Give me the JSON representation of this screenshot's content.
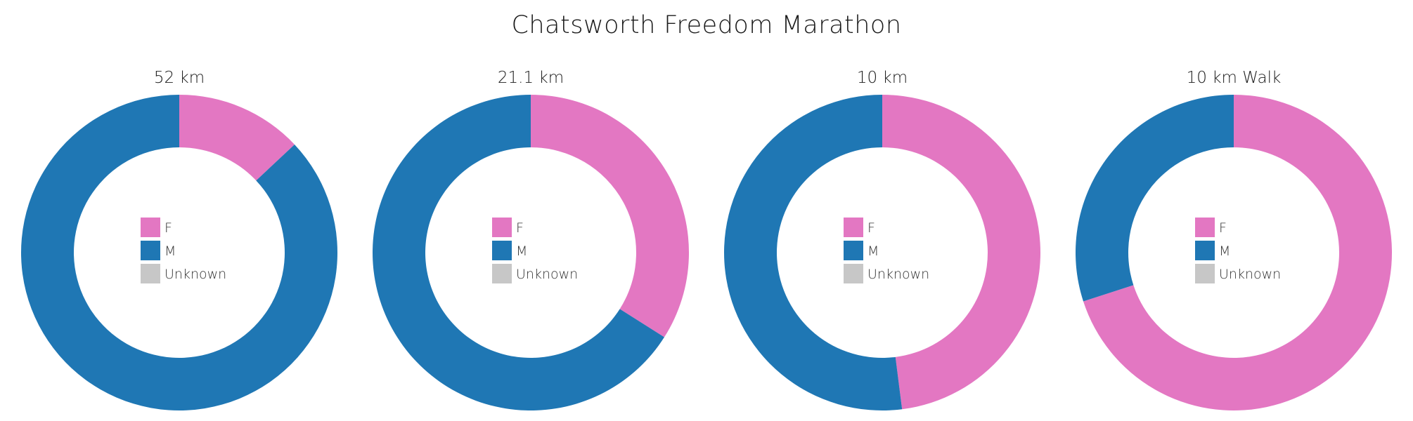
{
  "title": "Chatsworth Freedom Marathon",
  "legend": {
    "entries": [
      {
        "label": "F",
        "color": "#e377c2"
      },
      {
        "label": "M",
        "color": "#1f77b4"
      },
      {
        "label": "Unknown",
        "color": "#c7c7c7"
      }
    ]
  },
  "chart_data": [
    {
      "type": "pie",
      "title": "52 km",
      "categories": [
        "F",
        "M",
        "Unknown"
      ],
      "values": [
        0.13,
        0.87,
        0
      ],
      "colors": [
        "#e377c2",
        "#1f77b4",
        "#c7c7c7"
      ]
    },
    {
      "type": "pie",
      "title": "21.1 km",
      "categories": [
        "F",
        "M",
        "Unknown"
      ],
      "values": [
        0.34,
        0.66,
        0
      ],
      "colors": [
        "#e377c2",
        "#1f77b4",
        "#c7c7c7"
      ]
    },
    {
      "type": "pie",
      "title": "10 km",
      "categories": [
        "F",
        "M",
        "Unknown"
      ],
      "values": [
        0.48,
        0.52,
        0
      ],
      "colors": [
        "#e377c2",
        "#1f77b4",
        "#c7c7c7"
      ]
    },
    {
      "type": "pie",
      "title": "10 km Walk",
      "categories": [
        "F",
        "M",
        "Unknown"
      ],
      "values": [
        0.7,
        0.3,
        0
      ],
      "colors": [
        "#e377c2",
        "#1f77b4",
        "#c7c7c7"
      ]
    }
  ]
}
